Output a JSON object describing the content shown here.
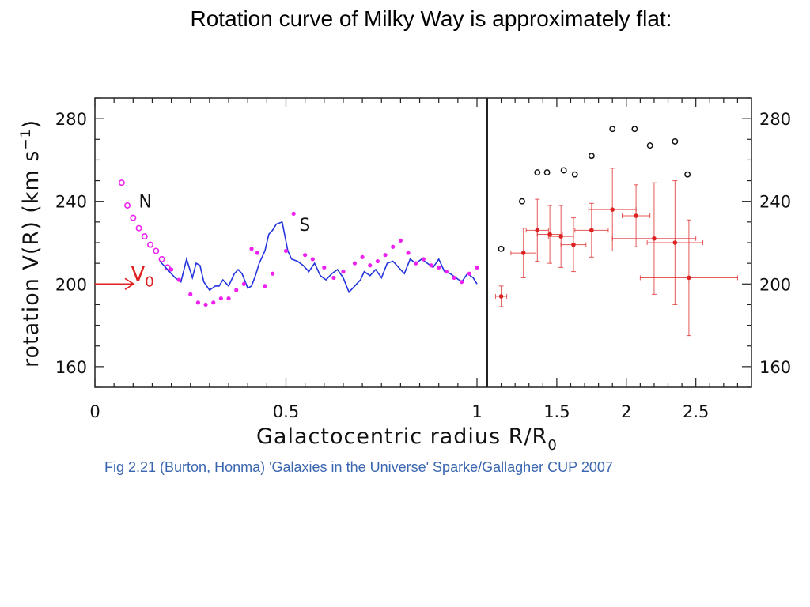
{
  "slide": {
    "title": "Rotation curve of Milky Way is approximately flat:",
    "caption": "Fig 2.21 (Burton, Honma) 'Galaxies in the Universe' Sparke/Gallagher CUP 2007"
  },
  "chart_data": [
    {
      "type": "line",
      "panel": "inner",
      "xlabel_parts": {
        "main": "Galactocentric radius R/R",
        "sub": "0"
      },
      "ylabel_parts": {
        "main": "rotation V(R) (km s",
        "sup": "−1",
        "end": ")"
      },
      "xlim": [
        0,
        1
      ],
      "ylim": [
        150,
        290
      ],
      "x_ticks": [
        0,
        0.5,
        1
      ],
      "x_tick_labels": [
        "0",
        "0.5",
        "1"
      ],
      "y_ticks": [
        160,
        200,
        240,
        280
      ],
      "y_tick_labels": [
        "160",
        "200",
        "240",
        "280"
      ],
      "annotations": [
        {
          "text": "N",
          "x": 0.115,
          "y": 240
        },
        {
          "text": "S",
          "x": 0.535,
          "y": 225
        },
        {
          "text": "V",
          "sub": "0",
          "x": 0.09,
          "y": 200
        }
      ],
      "colors": {
        "N_points": "#ee22ee",
        "S_points": "#ee22ee",
        "line": "#2233dd",
        "v0_arrow": "#e02020"
      },
      "series": [
        {
          "style": "open-circles",
          "x": [
            0.07,
            0.085,
            0.1,
            0.115,
            0.13,
            0.145,
            0.16,
            0.175,
            0.19
          ],
          "y": [
            249,
            238,
            232,
            227,
            223,
            219,
            216,
            212,
            208
          ]
        },
        {
          "style": "line",
          "x": [
            0.17,
            0.19,
            0.21,
            0.225,
            0.24,
            0.255,
            0.265,
            0.275,
            0.285,
            0.3,
            0.315,
            0.325,
            0.335,
            0.35,
            0.365,
            0.375,
            0.385,
            0.4,
            0.41,
            0.42,
            0.43,
            0.445,
            0.455,
            0.465,
            0.475,
            0.49,
            0.505,
            0.515,
            0.53,
            0.545,
            0.56,
            0.575,
            0.59,
            0.605,
            0.62,
            0.635,
            0.65,
            0.665,
            0.68,
            0.695,
            0.705,
            0.72,
            0.735,
            0.75,
            0.765,
            0.78,
            0.795,
            0.81,
            0.825,
            0.84,
            0.855,
            0.87,
            0.885,
            0.9,
            0.915,
            0.93,
            0.945,
            0.96,
            0.975,
            0.99,
            1.0
          ],
          "y": [
            211,
            207,
            203,
            201,
            212,
            203,
            210,
            209,
            201,
            197,
            199,
            199,
            202,
            199,
            205,
            207,
            205,
            198,
            199,
            204,
            210,
            216,
            224,
            226,
            229,
            230,
            216,
            212,
            211,
            209,
            206,
            210,
            204,
            202,
            205,
            207,
            203,
            196,
            199,
            202,
            206,
            204,
            207,
            203,
            210,
            211,
            208,
            205,
            212,
            210,
            212,
            210,
            208,
            212,
            206,
            205,
            203,
            201,
            205,
            203,
            200
          ]
        },
        {
          "style": "filled-dots",
          "x": [
            0.2,
            0.22,
            0.25,
            0.27,
            0.29,
            0.31,
            0.33,
            0.35,
            0.37,
            0.39,
            0.41,
            0.425,
            0.445,
            0.465,
            0.5,
            0.52,
            0.55,
            0.57,
            0.6,
            0.625,
            0.65,
            0.68,
            0.7,
            0.72,
            0.74,
            0.76,
            0.78,
            0.8,
            0.82,
            0.84,
            0.86,
            0.88,
            0.9,
            0.92,
            0.94,
            0.96,
            0.98,
            1.0
          ],
          "y": [
            207,
            202,
            195,
            191,
            190,
            191,
            193,
            193,
            197,
            200,
            217,
            215,
            199,
            205,
            216,
            234,
            214,
            212,
            208,
            203,
            206,
            210,
            213,
            209,
            211,
            214,
            218,
            221,
            215,
            210,
            212,
            209,
            208,
            206,
            203,
            201,
            205,
            208
          ]
        }
      ]
    },
    {
      "type": "scatter",
      "panel": "outer",
      "xlim": [
        1,
        2.9
      ],
      "ylim": [
        150,
        290
      ],
      "x_ticks": [
        1.5,
        2,
        2.5
      ],
      "x_tick_labels": [
        "1.5",
        "2",
        "2.5"
      ],
      "y_ticks": [
        160,
        200,
        240,
        280
      ],
      "y_tick_labels": [
        "160",
        "200",
        "240",
        "280"
      ],
      "colors": {
        "open_points": "#111111",
        "red_points": "#dd2222"
      },
      "series": [
        {
          "style": "open-circles",
          "x": [
            1.1,
            1.25,
            1.36,
            1.43,
            1.55,
            1.63,
            1.75,
            1.9,
            2.06,
            2.17,
            2.35,
            2.44
          ],
          "y": [
            217,
            240,
            254,
            254,
            255,
            253,
            262,
            275,
            275,
            267,
            269,
            253
          ]
        },
        {
          "style": "points-with-errorbars",
          "x": [
            1.1,
            1.26,
            1.36,
            1.45,
            1.53,
            1.62,
            1.75,
            1.9,
            2.07,
            2.2,
            2.35,
            2.45
          ],
          "y": [
            194,
            215,
            226,
            224,
            223,
            219,
            226,
            236,
            233,
            222,
            220,
            203
          ],
          "xerr": [
            0.04,
            0.09,
            0.08,
            0.09,
            0.09,
            0.09,
            0.12,
            0.17,
            0.1,
            0.3,
            0.2,
            0.35
          ],
          "yerr": [
            5,
            12,
            15,
            14,
            15,
            13,
            13,
            20,
            15,
            27,
            30,
            28
          ]
        }
      ]
    }
  ]
}
